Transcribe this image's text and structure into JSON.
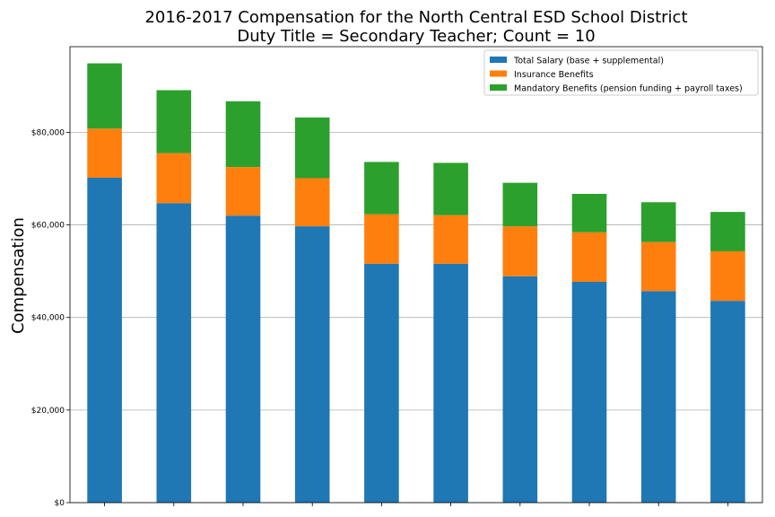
{
  "chart_data": {
    "type": "bar",
    "stacked": true,
    "title": "2016-2017 Compensation for the North Central ESD School District",
    "subtitle": "Duty Title = Secondary Teacher; Count = 10",
    "xlabel": "",
    "ylabel": "Compensation",
    "ylim": [
      0,
      98500
    ],
    "yticks": [
      0,
      20000,
      40000,
      60000,
      80000
    ],
    "ytick_labels": [
      "$0",
      "$20,000",
      "$40,000",
      "$60,000",
      "$80,000"
    ],
    "grid": "horizontal",
    "legend_position": "top-right",
    "categories": [
      "",
      "",
      "",
      "",
      "",
      "",
      "",
      "",
      "",
      ""
    ],
    "series": [
      {
        "name": "Total Salary (base + supplemental)",
        "color": "#1f77b4",
        "values": [
          70200,
          64700,
          62000,
          59700,
          51600,
          51600,
          48900,
          47700,
          45700,
          43600
        ]
      },
      {
        "name": "Insurance Benefits",
        "color": "#ff7f0e",
        "values": [
          10600,
          10800,
          10500,
          10400,
          10700,
          10500,
          10800,
          10700,
          10600,
          10700
        ]
      },
      {
        "name": "Mandatory Benefits (pension funding + payroll taxes)",
        "color": "#2ca02c",
        "values": [
          14100,
          13600,
          14200,
          13100,
          11300,
          11300,
          9400,
          8300,
          8600,
          8500
        ]
      }
    ]
  }
}
